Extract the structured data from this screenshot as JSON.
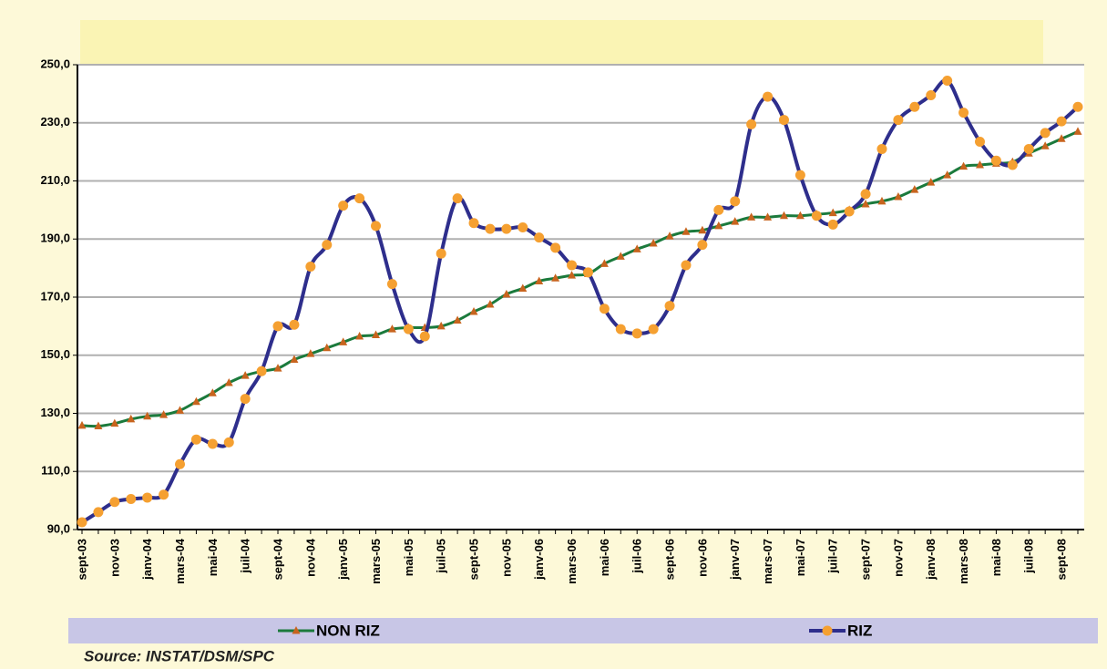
{
  "chart_data": {
    "type": "line",
    "categories": [
      "sept-03",
      null,
      "nov-03",
      null,
      "janv-04",
      null,
      "mars-04",
      null,
      "mai-04",
      null,
      "juil-04",
      null,
      "sept-04",
      null,
      "nov-04",
      null,
      "janv-05",
      null,
      "mars-05",
      null,
      "mai-05",
      null,
      "juil-05",
      null,
      "sept-05",
      null,
      "nov-05",
      null,
      "janv-06",
      null,
      "mars-06",
      null,
      "mai-06",
      null,
      "juil-06",
      null,
      "sept-06",
      null,
      "nov-06",
      null,
      "janv-07",
      null,
      "mars-07",
      null,
      "mai-07",
      null,
      "juil-07",
      null,
      "sept-07",
      null,
      "nov-07",
      null,
      "janv-08",
      null,
      "mars-08",
      null,
      "mai-08",
      null,
      "juil-08",
      null,
      "sept-08",
      null
    ],
    "series": [
      {
        "name": "NON RIZ",
        "color": "#1b7a3c",
        "marker_color": "#c8641e",
        "marker": "triangle",
        "values": [
          125.8,
          125.6,
          126.5,
          128,
          129,
          129.5,
          131,
          134,
          137,
          140.5,
          143,
          144.5,
          145.5,
          148.5,
          150.5,
          152.5,
          154.5,
          156.5,
          157,
          159,
          159.5,
          159.5,
          160,
          162,
          165,
          167.5,
          171,
          173,
          175.5,
          176.5,
          177.5,
          178,
          181.5,
          184,
          186.5,
          188.5,
          191,
          192.5,
          193,
          194.5,
          196,
          197.5,
          197.5,
          198,
          198,
          198.5,
          199,
          200,
          202,
          203,
          204.5,
          207,
          209.5,
          212,
          215,
          215.5,
          216,
          216.5,
          219.5,
          222,
          224.5,
          227
        ]
      },
      {
        "name": "RIZ",
        "color": "#2e2e8c",
        "marker_color": "#f5a031",
        "marker": "circle",
        "values": [
          92.5,
          96,
          99.5,
          100.5,
          101,
          102,
          112.5,
          121,
          119.5,
          120,
          135,
          144.5,
          160,
          160.5,
          180.5,
          188,
          201.5,
          204,
          194.5,
          174.5,
          159,
          156.5,
          185,
          204,
          195.5,
          193.5,
          193.5,
          194,
          190.5,
          187,
          181,
          178.5,
          166,
          159,
          157.5,
          159,
          167,
          181,
          188,
          200,
          203,
          229.5,
          239,
          231,
          212,
          198,
          195,
          199.5,
          205.5,
          221,
          231,
          235.5,
          239.5,
          244.5,
          233.5,
          223.5,
          217,
          215.5,
          221,
          226.5,
          230.5,
          235.5
        ]
      }
    ],
    "ylim": [
      90,
      250
    ],
    "yticks": [
      {
        "value": 90,
        "label": "90,0"
      },
      {
        "value": 110,
        "label": "110,0"
      },
      {
        "value": 130,
        "label": "130,0"
      },
      {
        "value": 150,
        "label": "150,0"
      },
      {
        "value": 170,
        "label": "170,0"
      },
      {
        "value": 190,
        "label": "190,0"
      },
      {
        "value": 210,
        "label": "210,0"
      },
      {
        "value": 230,
        "label": "230,0"
      },
      {
        "value": 250,
        "label": "250,0"
      }
    ],
    "grid": true,
    "smooth": true,
    "source": "Source: INSTAT/DSM/SPC"
  }
}
